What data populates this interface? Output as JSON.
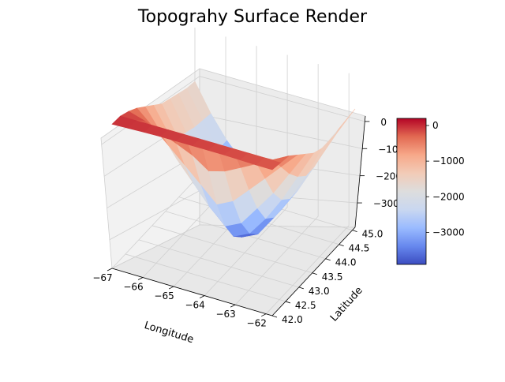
{
  "chart_data": {
    "type": "surface3d",
    "title": "Topograhy Surface Render",
    "xlabel": "Longitude",
    "ylabel": "Latitude",
    "zlabel": "",
    "x_ticks": [
      -67,
      -66,
      -65,
      -64,
      -63,
      -62
    ],
    "y_ticks": [
      42.0,
      42.5,
      43.0,
      43.5,
      44.0,
      44.5,
      45.0
    ],
    "z_ticks": [
      0,
      -1000,
      -2000,
      -3000
    ],
    "z_tick_labels": [
      "0",
      "−1000",
      "−2000",
      "−3000"
    ],
    "xlim": [
      -67,
      -61.8
    ],
    "ylim": [
      42.0,
      45.1
    ],
    "zlim": [
      -3900,
      200
    ],
    "colormap": "coolwarm",
    "colormap_stops": [
      "#3b4cc0",
      "#6788ee",
      "#9abbff",
      "#c9d7f0",
      "#dddddd",
      "#f2cbb7",
      "#f7a889",
      "#e26952",
      "#b40426"
    ],
    "colorbar": {
      "range": [
        -3900,
        200
      ],
      "ticks": [
        0,
        -1000,
        -2000,
        -3000
      ],
      "tick_labels": [
        "0",
        "−1000",
        "−2000",
        "−3000"
      ]
    },
    "surface": {
      "lon": [
        -67.0,
        -66.48,
        -65.96,
        -65.44,
        -64.92,
        -64.4,
        -63.88,
        -63.36,
        -62.84,
        -62.32,
        -61.8
      ],
      "lat": [
        42.0,
        42.31,
        42.62,
        42.93,
        43.24,
        43.55,
        43.86,
        44.17,
        44.48,
        44.79,
        45.1
      ],
      "elevation": [
        [
          -20,
          -25,
          -30,
          -40,
          -60,
          -80,
          -100,
          -120,
          -150,
          -180,
          -200
        ],
        [
          -40,
          -60,
          -80,
          -100,
          -120,
          -140,
          -160,
          -180,
          -200,
          -220,
          -250
        ],
        [
          -150,
          -300,
          -500,
          -700,
          -900,
          -1200,
          -1100,
          -900,
          -700,
          -500,
          -300
        ],
        [
          -300,
          -700,
          -1100,
          -1500,
          -1900,
          -2300,
          -2100,
          -1700,
          -1300,
          -900,
          -500
        ],
        [
          -500,
          -1100,
          -1700,
          -2200,
          -2700,
          -3100,
          -2900,
          -2400,
          -1900,
          -1300,
          -700
        ],
        [
          -700,
          -1400,
          -2100,
          -2700,
          -3200,
          -3600,
          -3400,
          -2900,
          -2300,
          -1600,
          -900
        ],
        [
          -900,
          -1700,
          -2400,
          -3000,
          -3500,
          -3850,
          -3650,
          -3100,
          -2500,
          -1800,
          -1000
        ],
        [
          -1000,
          -1800,
          -2500,
          -3100,
          -3550,
          -3800,
          -3600,
          -3100,
          -2500,
          -1800,
          -1000
        ],
        [
          -1100,
          -1900,
          -2600,
          -3150,
          -3500,
          -3700,
          -3500,
          -3000,
          -2400,
          -1700,
          -1000
        ],
        [
          -1200,
          -1950,
          -2600,
          -3100,
          -3400,
          -3550,
          -3350,
          -2850,
          -2250,
          -1600,
          -950
        ],
        [
          -1250,
          -2000,
          -2600,
          -3050,
          -3300,
          -3400,
          -3200,
          -2700,
          -2100,
          -1500,
          -900
        ]
      ]
    }
  }
}
